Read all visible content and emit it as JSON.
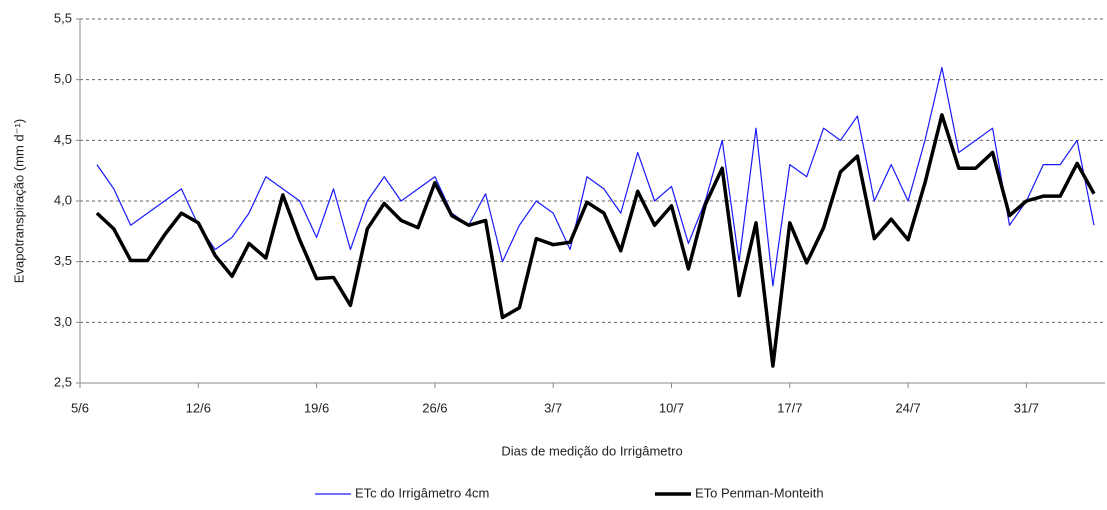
{
  "chart_data": {
    "type": "line",
    "y_label": "Evapotranspiração (mm d⁻¹)",
    "x_label": "Dias de medição do Irrigâmetro",
    "categories": [
      "5/6",
      null,
      null,
      null,
      null,
      null,
      null,
      "12/6",
      null,
      null,
      null,
      null,
      null,
      null,
      "19/6",
      null,
      null,
      null,
      null,
      null,
      null,
      "26/6",
      null,
      null,
      null,
      null,
      null,
      null,
      "3/7",
      null,
      null,
      null,
      null,
      null,
      null,
      "10/7",
      null,
      null,
      null,
      null,
      null,
      null,
      "17/7",
      null,
      null,
      null,
      null,
      null,
      null,
      "24/7",
      null,
      null,
      null,
      null,
      null,
      null,
      "31/7",
      null,
      null,
      null,
      null
    ],
    "series": [
      {
        "name": "ETc do Irrigâmetro 4cm",
        "color": "#1a1aff",
        "line_width": 1.2,
        "values": [
          null,
          4.3,
          4.1,
          3.8,
          3.9,
          4.0,
          4.1,
          3.8,
          3.6,
          3.7,
          3.9,
          4.2,
          4.1,
          4.0,
          3.7,
          4.1,
          3.6,
          4.0,
          4.2,
          4.0,
          4.1,
          4.2,
          3.9,
          3.8,
          4.06,
          3.5,
          3.8,
          4.0,
          3.9,
          3.6,
          4.2,
          4.1,
          3.9,
          4.4,
          4.0,
          4.12,
          3.65,
          4.0,
          4.5,
          3.5,
          4.6,
          3.3,
          4.3,
          4.2,
          4.6,
          4.5,
          4.7,
          4.0,
          4.3,
          4.0,
          4.5,
          5.1,
          4.4,
          4.5,
          4.6,
          3.8,
          4.0,
          4.3,
          4.3,
          4.5,
          3.8
        ]
      },
      {
        "name": "ETo Penman-Monteith",
        "color": "#000000",
        "line_width": 3.5,
        "values": [
          null,
          3.9,
          3.77,
          3.51,
          3.51,
          3.72,
          3.9,
          3.82,
          3.55,
          3.38,
          3.65,
          3.53,
          4.05,
          3.68,
          3.36,
          3.37,
          3.14,
          3.77,
          3.98,
          3.84,
          3.78,
          4.15,
          3.88,
          3.8,
          3.84,
          3.04,
          3.12,
          3.69,
          3.64,
          3.66,
          3.99,
          3.9,
          3.59,
          4.08,
          3.8,
          3.96,
          3.44,
          3.97,
          4.27,
          3.22,
          3.82,
          2.64,
          3.82,
          3.49,
          3.78,
          4.24,
          4.37,
          3.69,
          3.85,
          3.68,
          4.15,
          4.71,
          4.27,
          4.27,
          4.4,
          3.88,
          4.0,
          4.04,
          4.04,
          4.31,
          4.06
        ]
      }
    ],
    "ylim": [
      2.5,
      5.5
    ],
    "yticks": [
      {
        "value": 2.5,
        "label": "2,5"
      },
      {
        "value": 3.0,
        "label": "3,0"
      },
      {
        "value": 3.5,
        "label": "3,5"
      },
      {
        "value": 4.0,
        "label": "4,0"
      },
      {
        "value": 4.5,
        "label": "4,5"
      },
      {
        "value": 5.0,
        "label": "5,0"
      },
      {
        "value": 5.5,
        "label": "5,5"
      }
    ],
    "grid": true,
    "legend": "bottom"
  }
}
